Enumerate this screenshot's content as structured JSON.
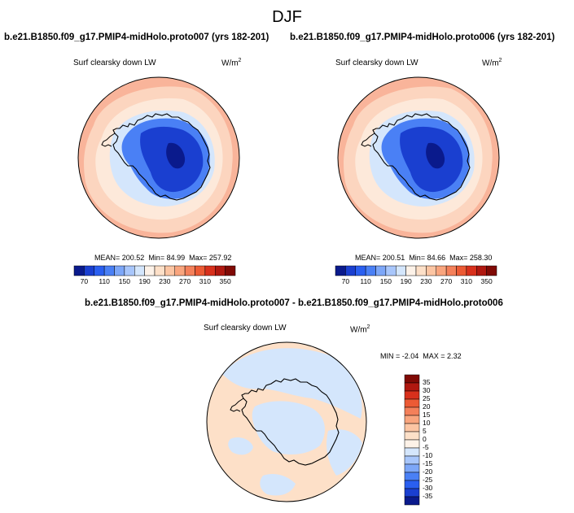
{
  "season": "DJF",
  "panel_left": {
    "title": "b.e21.B1850.f09_g17.PMIP4-midHolo.proto007 (yrs 182-201)",
    "variable": "Surf clearsky down LW",
    "units_base": "W/m",
    "units_exp": "2",
    "stats": {
      "mean": "MEAN= 200.52",
      "min": "Min=  84.99",
      "max": "Max= 257.92"
    }
  },
  "panel_right": {
    "title": "b.e21.B1850.f09_g17.PMIP4-midHolo.proto006 (yrs 182-201)",
    "variable": "Surf clearsky down LW",
    "units_base": "W/m",
    "units_exp": "2",
    "stats": {
      "mean": "MEAN= 200.51",
      "min": "Min=  84.66",
      "max": "Max= 258.30"
    }
  },
  "panel_diff": {
    "title": "b.e21.B1850.f09_g17.PMIP4-midHolo.proto007 - b.e21.B1850.f09_g17.PMIP4-midHolo.proto006",
    "variable": "Surf clearsky down LW",
    "units_base": "W/m",
    "units_exp": "2",
    "stats": {
      "min": "MIN =  -2.04",
      "max": "MAX =   2.32"
    }
  },
  "colorbar_abs": {
    "colors": [
      "#0a1a8c",
      "#1a3fd0",
      "#2a5ff0",
      "#4a80f5",
      "#7da7f8",
      "#a8c6fb",
      "#d4e6fc",
      "#fdf2e8",
      "#fde0c8",
      "#fcc5a3",
      "#f9a57e",
      "#f4805a",
      "#ec5a34",
      "#d8301c",
      "#b01810",
      "#800a05"
    ],
    "labels": [
      "70",
      "110",
      "150",
      "190",
      "230",
      "270",
      "310",
      "350"
    ]
  },
  "colorbar_diff": {
    "colors": [
      "#800a05",
      "#b01810",
      "#d8301c",
      "#ec5a34",
      "#f4805a",
      "#f9a57e",
      "#fcc5a3",
      "#fde0c8",
      "#fdf2e8",
      "#d4e6fc",
      "#a8c6fb",
      "#7da7f8",
      "#4a80f5",
      "#2a5ff0",
      "#1a3fd0",
      "#0a1a8c"
    ],
    "labels": [
      "35",
      "30",
      "25",
      "20",
      "15",
      "10",
      "5",
      "0",
      "-5",
      "-10",
      "-15",
      "-20",
      "-25",
      "-30",
      "-35"
    ]
  },
  "colors": {
    "ocean_outer": "#f9b49a",
    "ocean_mid": "#fcd5bf",
    "ocean_inner": "#fde9da",
    "seaice": "#d4e6fc",
    "land_low": "#4a80f5",
    "land_mid": "#1a3fd0",
    "land_high": "#0a1a8c",
    "diff_pos": "#fde0c8",
    "diff_neg": "#d4e6fc",
    "coast": "#000000"
  }
}
